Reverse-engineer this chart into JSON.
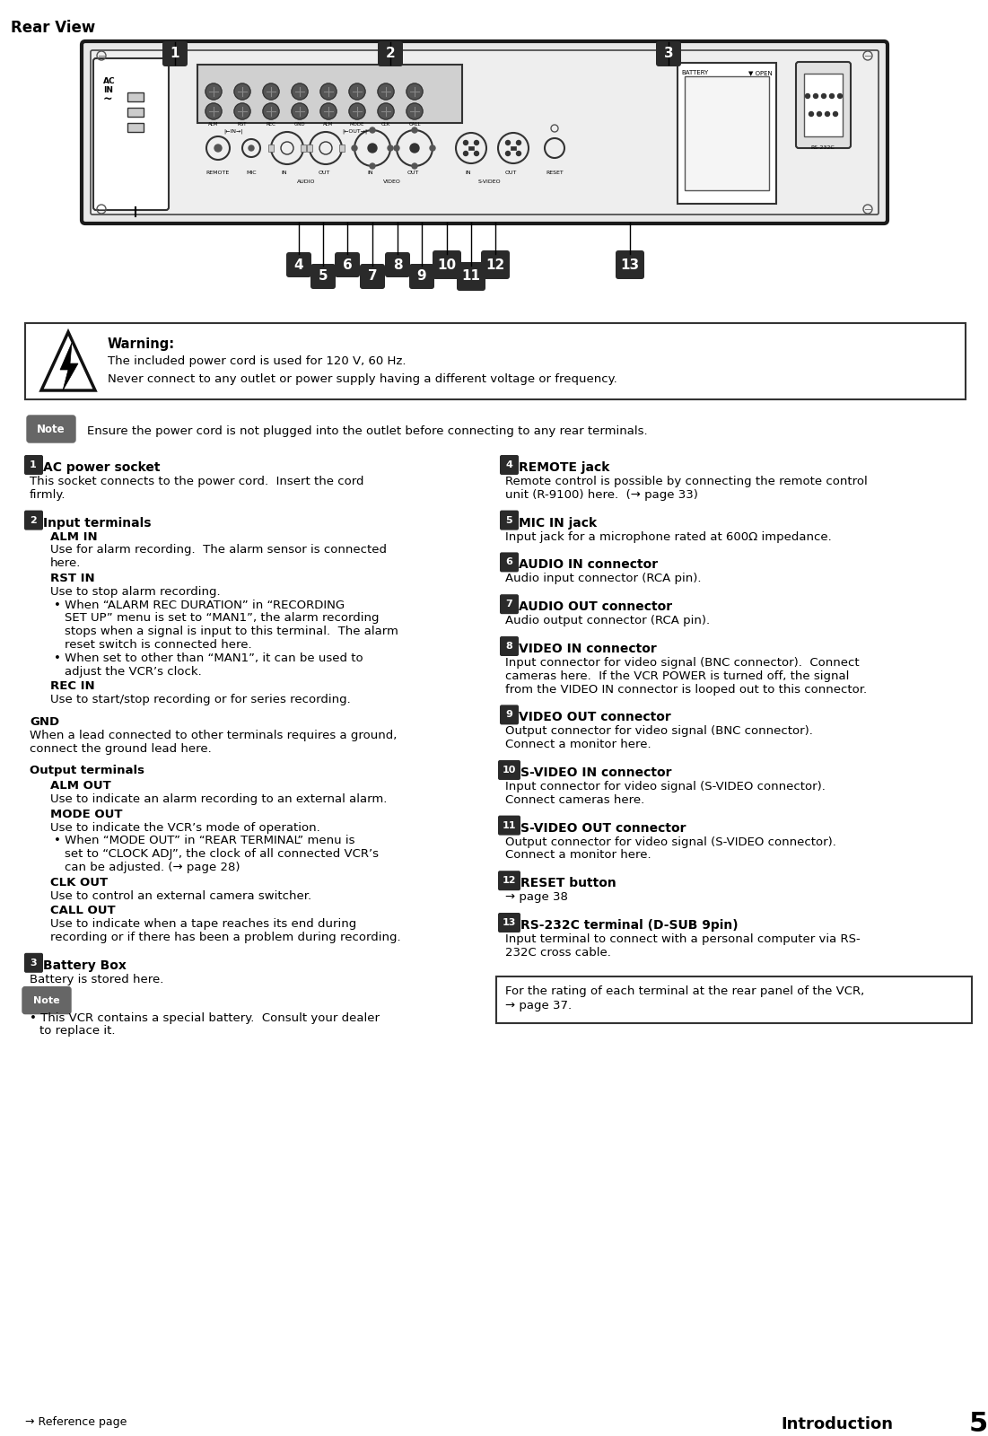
{
  "title": "Rear View",
  "bg_color": "#ffffff",
  "warning_title": "Warning:",
  "warning_line1": "The included power cord is used for 120 V, 60 Hz.",
  "warning_line2": "Never connect to any outlet or power supply having a different voltage or frequency.",
  "note_text": "Ensure the power cord is not plugged into the outlet before connecting to any rear terminals.",
  "bottom_box_line1": "For the rating of each terminal at the rear panel of the VCR,",
  "bottom_box_line2": "→ page 37.",
  "footer_left": "→ Reference page",
  "footer_right_word": "Introduction",
  "footer_right_num": "5"
}
